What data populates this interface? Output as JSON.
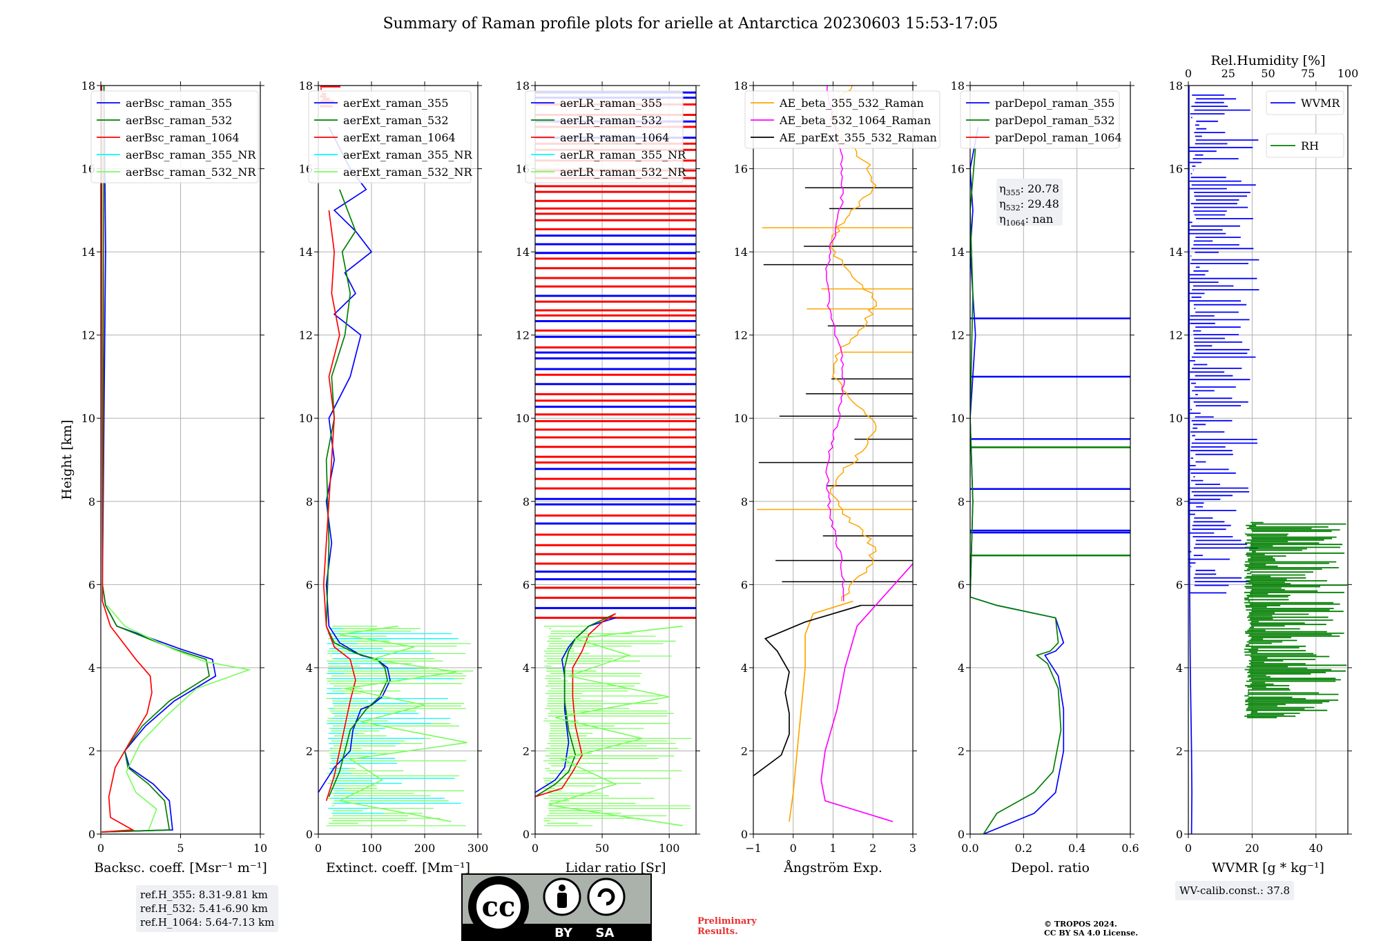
{
  "figure": {
    "title": "Summary of Raman profile plots for arielle at Antarctica 20230603 15:53-17:05",
    "ref_heights": [
      "ref.H_355: 8.31-9.81 km",
      "ref.H_532: 5.41-6.90 km",
      "ref.H_1064: 5.64-7.13 km"
    ],
    "wv_calib": "WV-calib.const.: 37.8",
    "preliminary": [
      "Preliminary",
      "Results."
    ],
    "copyright": [
      "© TROPOS 2024.",
      "CC BY SA 4.0 License."
    ],
    "license_badge": [
      "BY",
      "SA"
    ],
    "colors": {
      "355": "#0000ff",
      "532": "#007f00",
      "1064": "#ff0000",
      "355_NR": "#00ffff",
      "532_NR": "#7cfc60",
      "ae1": "#ffa500",
      "ae2": "#ff00ff",
      "ae3": "#000000",
      "rh": "#007f00",
      "wvmr": "#0000ff"
    }
  },
  "chart_data": [
    {
      "type": "line",
      "ylabel": "Height [km]",
      "xlabel": "Backsc. coeff. [Msr⁻¹ m⁻¹]",
      "xlim": [
        0,
        10
      ],
      "ylim": [
        0,
        18
      ],
      "xticks": [
        0,
        5,
        10
      ],
      "yticks": [
        0,
        2,
        4,
        6,
        8,
        10,
        12,
        14,
        16,
        18
      ],
      "legend": "top-left",
      "series": [
        {
          "name": "aerBsc_raman_355",
          "color": "355",
          "x": [
            0.05,
            4.5,
            4.3,
            3.3,
            1.8,
            1.5,
            2.8,
            4.6,
            7.2,
            7.0,
            5.0,
            1.0,
            0.3,
            0.1,
            0.15,
            0.2,
            0.3,
            0.25,
            0.2
          ],
          "y": [
            0.05,
            0.1,
            0.8,
            1.2,
            1.6,
            2.0,
            2.6,
            3.2,
            3.8,
            4.2,
            4.45,
            5.0,
            5.5,
            6.0,
            8.0,
            10.0,
            14.0,
            16.0,
            18.0
          ]
        },
        {
          "name": "aerBsc_raman_532",
          "color": "532",
          "x": [
            0.05,
            4.3,
            4.0,
            3.0,
            1.7,
            1.5,
            2.6,
            4.3,
            6.8,
            6.6,
            4.6,
            1.0,
            0.3,
            0.1,
            0.15,
            0.2
          ],
          "y": [
            0.05,
            0.1,
            0.8,
            1.2,
            1.6,
            2.0,
            2.6,
            3.2,
            3.8,
            4.2,
            4.45,
            5.0,
            5.5,
            6.0,
            10.0,
            18.0
          ]
        },
        {
          "name": "aerBsc_raman_1064",
          "color": "1064",
          "x": [
            0.05,
            2.0,
            0.6,
            0.5,
            0.9,
            1.8,
            2.9,
            3.2,
            3.1,
            2.2,
            0.6,
            0.1,
            0.05
          ],
          "y": [
            0.05,
            0.1,
            0.4,
            0.9,
            1.6,
            2.2,
            2.9,
            3.4,
            3.8,
            4.2,
            5.0,
            5.6,
            18.0
          ]
        },
        {
          "name": "aerBsc_raman_355_NR",
          "color": "355_NR",
          "x": [],
          "y": []
        },
        {
          "name": "aerBsc_raman_532_NR",
          "color": "532_NR",
          "x": [
            3.0,
            3.5,
            2.2,
            1.6,
            2.5,
            4.0,
            6.0,
            9.3,
            6.5,
            4.5,
            1.5,
            0.4
          ],
          "y": [
            0.1,
            0.6,
            1.0,
            1.5,
            2.2,
            2.8,
            3.5,
            3.95,
            4.15,
            4.45,
            5.0,
            5.5
          ]
        }
      ]
    },
    {
      "type": "line",
      "xlabel": "Extinct. coeff. [Mm⁻¹]",
      "xlim": [
        0,
        300
      ],
      "ylim": [
        0,
        18
      ],
      "xticks": [
        0,
        100,
        200,
        300
      ],
      "legend": "top-left",
      "series": [
        {
          "name": "aerExt_raman_355",
          "color": "355",
          "x": [
            0,
            30,
            60,
            65,
            80,
            100,
            120,
            135,
            130,
            110,
            80,
            40,
            20,
            15,
            25,
            15,
            30,
            20,
            60,
            80,
            30,
            70,
            50,
            100,
            70,
            30,
            90,
            60,
            20
          ],
          "y": [
            1.0,
            1.6,
            2.0,
            2.5,
            3.0,
            3.1,
            3.3,
            3.7,
            4.0,
            4.2,
            4.3,
            4.6,
            5.0,
            6.0,
            7.0,
            8.0,
            9.0,
            10.0,
            11.0,
            12.0,
            12.5,
            13.0,
            13.5,
            14.0,
            14.5,
            15.0,
            15.5,
            16.0,
            17.0
          ]
        },
        {
          "name": "aerExt_raman_532",
          "color": "532",
          "x": [
            20,
            40,
            50,
            60,
            90,
            115,
            130,
            125,
            110,
            70,
            30,
            15,
            20,
            15,
            30,
            25,
            50,
            60,
            45,
            70,
            40
          ],
          "y": [
            0.9,
            1.5,
            2.0,
            2.5,
            3.0,
            3.3,
            3.7,
            4.0,
            4.2,
            4.35,
            4.6,
            5.0,
            7.0,
            9.0,
            10.0,
            11.0,
            12.0,
            13.0,
            14.0,
            14.5,
            15.5
          ]
        },
        {
          "name": "aerExt_raman_1064",
          "color": "1064",
          "x": [
            15,
            30,
            40,
            50,
            60,
            70,
            60,
            30,
            15,
            10,
            30,
            20,
            40,
            25,
            30,
            20
          ],
          "y": [
            0.8,
            1.4,
            2.0,
            2.6,
            3.2,
            3.7,
            4.2,
            4.5,
            5.0,
            6.0,
            10.0,
            11.0,
            12.0,
            13.0,
            14.0,
            15.0
          ]
        },
        {
          "name": "aerExt_raman_355_NR",
          "color": "355_NR",
          "x": [],
          "y": []
        },
        {
          "name": "aerExt_raman_532_NR",
          "color": "532_NR",
          "x": [
            250,
            40,
            120,
            60,
            280,
            80,
            200,
            50,
            260,
            100,
            180,
            40,
            150
          ],
          "y": [
            0.3,
            0.8,
            1.3,
            1.8,
            2.2,
            2.7,
            3.1,
            3.5,
            3.9,
            4.2,
            4.5,
            4.8,
            5.0
          ]
        }
      ]
    },
    {
      "type": "line",
      "xlabel": "Lidar ratio [Sr]",
      "xlim": [
        0,
        120
      ],
      "ylim": [
        0,
        18
      ],
      "xticks": [
        0,
        50,
        100
      ],
      "legend": "top-left",
      "series": [
        {
          "name": "aerLR_raman_355",
          "color": "355",
          "x": [
            0,
            15,
            22,
            25,
            22,
            22,
            20,
            25,
            30,
            40,
            60
          ],
          "y": [
            1.0,
            1.3,
            1.6,
            2.2,
            3.0,
            3.8,
            4.2,
            4.5,
            4.7,
            5.0,
            5.2
          ]
        },
        {
          "name": "aerLR_raman_532",
          "color": "532",
          "x": [
            0,
            15,
            25,
            30,
            25,
            22,
            22,
            25,
            30,
            40,
            60
          ],
          "y": [
            0.9,
            1.2,
            1.5,
            1.9,
            2.5,
            3.2,
            4.0,
            4.4,
            4.7,
            5.0,
            5.3
          ]
        },
        {
          "name": "aerLR_raman_1064",
          "color": "1064",
          "x": [
            0,
            20,
            28,
            35,
            30,
            28,
            28,
            35,
            40,
            50,
            60
          ],
          "y": [
            0.9,
            1.1,
            1.5,
            1.9,
            2.6,
            3.3,
            4.0,
            4.4,
            4.8,
            5.1,
            5.3
          ]
        },
        {
          "name": "aerLR_raman_355_NR",
          "color": "355_NR",
          "x": [],
          "y": []
        },
        {
          "name": "aerLR_raman_532_NR",
          "color": "532_NR",
          "x": [
            110,
            10,
            60,
            20,
            80,
            15,
            100,
            25,
            70,
            30,
            110
          ],
          "y": [
            0.2,
            0.7,
            1.2,
            1.8,
            2.3,
            2.8,
            3.3,
            3.8,
            4.3,
            4.7,
            5.0
          ]
        }
      ]
    },
    {
      "type": "line",
      "xlabel": "Ångström Exp.",
      "xlim": [
        -1,
        3
      ],
      "ylim": [
        0,
        18
      ],
      "xticks": [
        -1,
        0,
        1,
        2,
        3
      ],
      "legend": "top-left",
      "series": [
        {
          "name": "AE_beta_355_532_Raman",
          "color": "ae1",
          "x": [
            -0.1,
            0.0,
            0.1,
            0.2,
            0.3,
            0.3,
            0.5,
            1.5
          ],
          "y": [
            0.3,
            1.0,
            2.0,
            3.0,
            4.0,
            4.8,
            5.3,
            5.6
          ]
        },
        {
          "name": "AE_beta_532_1064_Raman",
          "color": "ae2",
          "x": [
            2.5,
            0.8,
            0.7,
            0.8,
            1.1,
            1.3,
            1.6,
            3.0
          ],
          "y": [
            0.3,
            0.8,
            1.3,
            2.0,
            3.0,
            4.0,
            5.0,
            6.5
          ]
        },
        {
          "name": "AE_parExt_355_532_Raman",
          "color": "ae3",
          "x": [
            -1.0,
            -0.3,
            -0.1,
            -0.1,
            -0.2,
            -0.1,
            -0.4,
            -0.7,
            0.3,
            1.7
          ],
          "y": [
            1.4,
            1.9,
            2.4,
            2.9,
            3.4,
            3.9,
            4.4,
            4.7,
            5.1,
            5.5
          ]
        }
      ]
    },
    {
      "type": "line",
      "xlabel": "Depol. ratio",
      "xlim": [
        0,
        0.6
      ],
      "ylim": [
        0,
        18
      ],
      "xticks": [
        0.0,
        0.2,
        0.4,
        0.6
      ],
      "legend": "top-left",
      "annotation": {
        "rows": [
          {
            "sym": "η",
            "sub": "355",
            "val": ": 20.78"
          },
          {
            "sym": "η",
            "sub": "532",
            "val": ": 29.48"
          },
          {
            "sym": "η",
            "sub": "1064",
            "val": ": nan"
          }
        ]
      },
      "series": [
        {
          "name": "parDepol_raman_355",
          "color": "355",
          "x": [
            0.05,
            0.24,
            0.32,
            0.35,
            0.35,
            0.33,
            0.3,
            0.28,
            0.32,
            0.35,
            0.32,
            0.1,
            0.0,
            0.01,
            0.0,
            0.02,
            0.0,
            0.01,
            0.0,
            0.03
          ],
          "y": [
            0.0,
            0.5,
            1.0,
            2.0,
            3.0,
            3.8,
            4.1,
            4.3,
            4.4,
            4.6,
            5.2,
            5.5,
            5.7,
            8.0,
            10.0,
            12.0,
            14.0,
            15.0,
            16.0,
            17.0
          ]
        },
        {
          "name": "parDepol_raman_532",
          "color": "532",
          "x": [
            0.05,
            0.1,
            0.24,
            0.31,
            0.34,
            0.33,
            0.29,
            0.25,
            0.3,
            0.33,
            0.32,
            0.1,
            0.0,
            0.01,
            0.0,
            0.01,
            0.0,
            0.02
          ],
          "y": [
            0.0,
            0.5,
            1.0,
            1.5,
            2.5,
            3.5,
            4.1,
            4.3,
            4.4,
            4.6,
            5.2,
            5.5,
            5.7,
            8.0,
            10.0,
            13.0,
            15.0,
            16.5
          ]
        },
        {
          "name": "parDepol_raman_1064",
          "color": "1064",
          "x": [],
          "y": []
        }
      ]
    },
    {
      "type": "line",
      "xlabel": "WVMR [g * kg⁻¹]",
      "toplabel": "Rel.Humidity [%]",
      "xlim": [
        0,
        50
      ],
      "ylim": [
        0,
        18
      ],
      "xticks": [
        0,
        20,
        40
      ],
      "top_xlim": [
        0,
        100
      ],
      "top_xticks": [
        0,
        25,
        50,
        75,
        100
      ],
      "legend": "top-right",
      "series": [
        {
          "name": "WVMR",
          "color": "wvmr",
          "x": [
            1.0,
            1.1,
            1.0,
            0.8,
            0.6,
            0.5,
            0.4,
            0.3,
            0.3,
            0.2,
            0.2
          ],
          "y": [
            0.0,
            1.0,
            2.0,
            3.0,
            4.0,
            5.0,
            6.0,
            8.0,
            10.0,
            14.0,
            18.0
          ]
        },
        {
          "name": "RH",
          "color": "rh",
          "x": [],
          "y": []
        }
      ]
    }
  ]
}
